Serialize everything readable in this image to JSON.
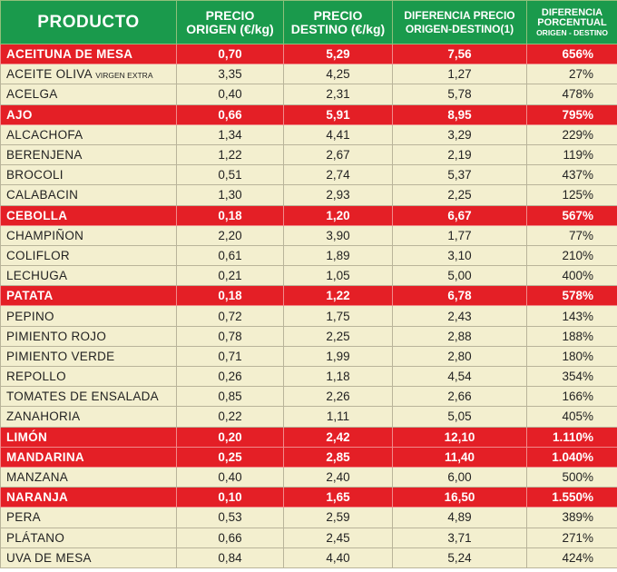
{
  "headers": {
    "producto": [
      "PRODUCTO"
    ],
    "precio_origen": [
      "PRECIO",
      "ORIGEN (€/kg)"
    ],
    "precio_destino": [
      "PRECIO",
      "DESTINO (€/kg)"
    ],
    "diferencia_precio": [
      "DIFERENCIA PRECIO",
      "ORIGEN-DESTINO(1)"
    ],
    "diferencia_porcentual": [
      "DIFERENCIA",
      "PORCENTUAL"
    ],
    "diferencia_porcentual_sub": "ORIGEN - DESTINO"
  },
  "colors": {
    "header_green": "#1a9a4c",
    "highlight_red": "#e41f26",
    "row_cream": "#f3efcf"
  },
  "rows": [
    {
      "producto": "ACEITUNA DE MESA",
      "origen": "0,70",
      "destino": "5,29",
      "diferencia": "7,56",
      "porcentaje": "656%",
      "highlight": true
    },
    {
      "producto": "ACEITE OLIVA",
      "sufijo": "VIRGEN EXTRA",
      "origen": "3,35",
      "destino": "4,25",
      "diferencia": "1,27",
      "porcentaje": "27%",
      "highlight": false
    },
    {
      "producto": "ACELGA",
      "origen": "0,40",
      "destino": "2,31",
      "diferencia": "5,78",
      "porcentaje": "478%",
      "highlight": false
    },
    {
      "producto": "AJO",
      "origen": "0,66",
      "destino": "5,91",
      "diferencia": "8,95",
      "porcentaje": "795%",
      "highlight": true
    },
    {
      "producto": "ALCACHOFA",
      "origen": "1,34",
      "destino": "4,41",
      "diferencia": "3,29",
      "porcentaje": "229%",
      "highlight": false
    },
    {
      "producto": "BERENJENA",
      "origen": "1,22",
      "destino": "2,67",
      "diferencia": "2,19",
      "porcentaje": "119%",
      "highlight": false
    },
    {
      "producto": "BROCOLI",
      "origen": "0,51",
      "destino": "2,74",
      "diferencia": "5,37",
      "porcentaje": "437%",
      "highlight": false
    },
    {
      "producto": "CALABACIN",
      "origen": "1,30",
      "destino": "2,93",
      "diferencia": "2,25",
      "porcentaje": "125%",
      "highlight": false
    },
    {
      "producto": "CEBOLLA",
      "origen": "0,18",
      "destino": "1,20",
      "diferencia": "6,67",
      "porcentaje": "567%",
      "highlight": true
    },
    {
      "producto": "CHAMPIÑON",
      "origen": "2,20",
      "destino": "3,90",
      "diferencia": "1,77",
      "porcentaje": "77%",
      "highlight": false
    },
    {
      "producto": "COLIFLOR",
      "origen": "0,61",
      "destino": "1,89",
      "diferencia": "3,10",
      "porcentaje": "210%",
      "highlight": false
    },
    {
      "producto": "LECHUGA",
      "origen": "0,21",
      "destino": "1,05",
      "diferencia": "5,00",
      "porcentaje": "400%",
      "highlight": false
    },
    {
      "producto": "PATATA",
      "origen": "0,18",
      "destino": "1,22",
      "diferencia": "6,78",
      "porcentaje": "578%",
      "highlight": true
    },
    {
      "producto": "PEPINO",
      "origen": "0,72",
      "destino": "1,75",
      "diferencia": "2,43",
      "porcentaje": "143%",
      "highlight": false
    },
    {
      "producto": "PIMIENTO ROJO",
      "origen": "0,78",
      "destino": "2,25",
      "diferencia": "2,88",
      "porcentaje": "188%",
      "highlight": false
    },
    {
      "producto": "PIMIENTO VERDE",
      "origen": "0,71",
      "destino": "1,99",
      "diferencia": "2,80",
      "porcentaje": "180%",
      "highlight": false
    },
    {
      "producto": "REPOLLO",
      "origen": "0,26",
      "destino": "1,18",
      "diferencia": "4,54",
      "porcentaje": "354%",
      "highlight": false
    },
    {
      "producto": "TOMATES DE ENSALADA",
      "origen": "0,85",
      "destino": "2,26",
      "diferencia": "2,66",
      "porcentaje": "166%",
      "highlight": false
    },
    {
      "producto": "ZANAHORIA",
      "origen": "0,22",
      "destino": "1,11",
      "diferencia": "5,05",
      "porcentaje": "405%",
      "highlight": false
    },
    {
      "producto": "LIMÓN",
      "origen": "0,20",
      "destino": "2,42",
      "diferencia": "12,10",
      "porcentaje": "1.110%",
      "highlight": true
    },
    {
      "producto": "MANDARINA",
      "origen": "0,25",
      "destino": "2,85",
      "diferencia": "11,40",
      "porcentaje": "1.040%",
      "highlight": true
    },
    {
      "producto": "MANZANA",
      "origen": "0,40",
      "destino": "2,40",
      "diferencia": "6,00",
      "porcentaje": "500%",
      "highlight": false
    },
    {
      "producto": "NARANJA",
      "origen": "0,10",
      "destino": "1,65",
      "diferencia": "16,50",
      "porcentaje": "1.550%",
      "highlight": true
    },
    {
      "producto": "PERA",
      "origen": "0,53",
      "destino": "2,59",
      "diferencia": "4,89",
      "porcentaje": "389%",
      "highlight": false
    },
    {
      "producto": "PLÁTANO",
      "origen": "0,66",
      "destino": "2,45",
      "diferencia": "3,71",
      "porcentaje": "271%",
      "highlight": false
    },
    {
      "producto": "UVA DE MESA",
      "origen": "0,84",
      "destino": "4,40",
      "diferencia": "5,24",
      "porcentaje": "424%",
      "highlight": false
    }
  ]
}
